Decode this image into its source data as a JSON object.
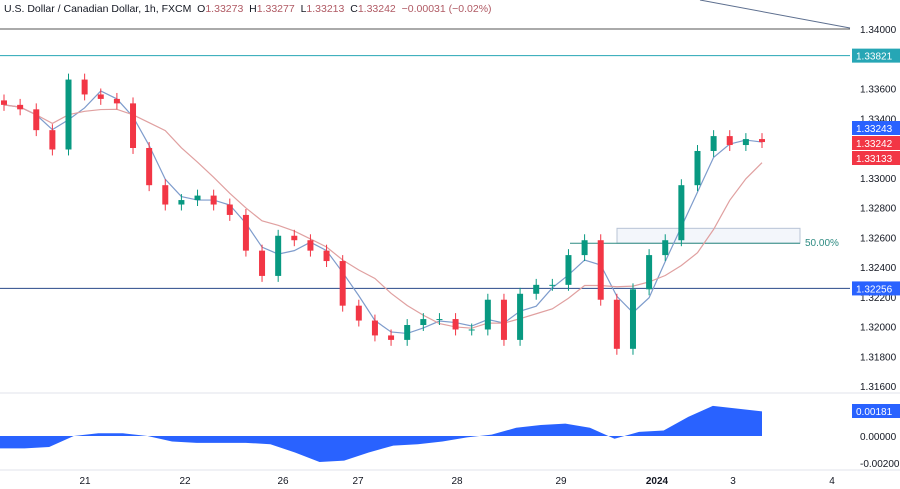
{
  "header": {
    "symbol": "U.S. Dollar / Canadian Dollar, 1h, FXCM",
    "o_label": "O",
    "o": "1.33273",
    "h_label": "H",
    "h": "1.33277",
    "l_label": "L",
    "l": "1.33213",
    "c_label": "C",
    "c": "1.33242",
    "change": "−0.00031 (−0.02%)"
  },
  "colors": {
    "up": "#089981",
    "down": "#f23645",
    "fast_ma": "#7e9ccc",
    "slow_ma": "#e0a0a0",
    "oscillator": "#2962ff",
    "resistance_line": "#26a6b5",
    "support_line": "#2a4a8a"
  },
  "chart_data": {
    "type": "candlestick",
    "price_ticks": [
      "1.34000",
      "1.33600",
      "1.33400",
      "1.33000",
      "1.32800",
      "1.32600",
      "1.32400",
      "1.32200",
      "1.32000",
      "1.31800",
      "1.31600"
    ],
    "ylim": [
      1.3158,
      1.3421
    ],
    "x_labels": [
      "21",
      "22",
      "26",
      "27",
      "28",
      "29",
      "2024",
      "3",
      "4"
    ],
    "closes": [
      1.3349,
      1.3346,
      1.3332,
      1.3319,
      1.3366,
      1.3356,
      1.3353,
      1.335,
      1.332,
      1.3295,
      1.3282,
      1.3285,
      1.3288,
      1.3282,
      1.3275,
      1.3251,
      1.3234,
      1.3261,
      1.3258,
      1.3251,
      1.3244,
      1.3214,
      1.3204,
      1.3194,
      1.3191,
      1.3201,
      1.3205,
      1.3205,
      1.3198,
      1.3198,
      1.3218,
      1.3191,
      1.3222,
      1.3228,
      1.3228,
      1.3248,
      1.3258,
      1.3218,
      1.3185,
      1.3225,
      1.3248,
      1.3258,
      1.3295,
      1.3318,
      1.3328,
      1.3322,
      1.3326,
      1.3324
    ],
    "horizontal_levels": [
      {
        "price": 1.34,
        "label": "1.34000"
      },
      {
        "price": 1.33821,
        "label": "1.33821"
      },
      {
        "price": 1.32256,
        "label": "1.32256"
      }
    ],
    "price_tags": [
      {
        "label": "1.33243",
        "color": "#2962ff"
      },
      {
        "label": "1.33242",
        "color": "#f23645"
      },
      {
        "label": "1.33133",
        "color": "#f23645"
      }
    ],
    "fib_box": {
      "top": 1.3266,
      "bottom": 1.3256,
      "label": "50.00%"
    },
    "oscillator": {
      "values": [
        -0.0009,
        -0.0009,
        -0.0008,
        0.0,
        0.0002,
        0.0002,
        0.0,
        -0.0004,
        -0.0005,
        -0.0005,
        -0.0005,
        -0.0006,
        -0.0012,
        -0.0019,
        -0.0018,
        -0.0012,
        -0.0007,
        -0.0006,
        -0.0004,
        -0.0001,
        0.0001,
        0.0006,
        0.0008,
        0.0009,
        0.0006,
        -0.0002,
        0.0003,
        0.0004,
        0.0014,
        0.0022,
        0.002,
        0.0018
      ],
      "ticks": [
        "0.00000",
        "-0.00200"
      ],
      "current": "0.00181"
    }
  }
}
